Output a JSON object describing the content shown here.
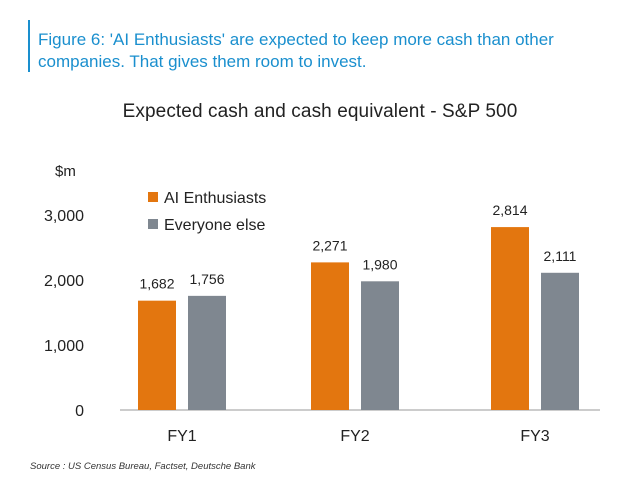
{
  "figure": {
    "caption": "Figure 6: 'AI Enthusiasts' are expected to keep more cash than other companies. That gives them room to invest."
  },
  "source_note": "Source : US Census Bureau, Factset, Deutsche Bank",
  "colors": {
    "accent": "#1a8fce",
    "series_ai": "#e3760f",
    "series_else": "#7f8790"
  },
  "chart_data": {
    "type": "bar",
    "title": "Expected cash and cash equivalent - S&P 500",
    "ylabel": "$m",
    "xlabel": "",
    "categories": [
      "FY1",
      "FY2",
      "FY3"
    ],
    "series": [
      {
        "name": "AI Enthusiasts",
        "values": [
          1682,
          2271,
          2814
        ],
        "labels": [
          "1,682",
          "2,271",
          "2,814"
        ]
      },
      {
        "name": "Everyone else",
        "values": [
          1756,
          1980,
          2111
        ],
        "labels": [
          "1,756",
          "1,980",
          "2,111"
        ]
      }
    ],
    "yticks": [
      0,
      1000,
      2000,
      3000
    ],
    "ytick_labels": [
      "0",
      "1,000",
      "2,000",
      "3,000"
    ],
    "ylim": [
      0,
      3000
    ],
    "grid": false,
    "legend_position": "top-left"
  }
}
